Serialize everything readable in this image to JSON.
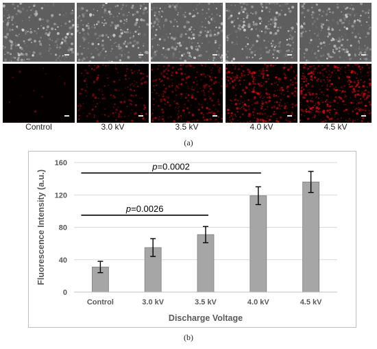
{
  "panel_a": {
    "caption": "(a)",
    "labels": [
      "Control",
      "3.0 kV",
      "3.5 kV",
      "4.0 kV",
      "4.5 kV"
    ],
    "red_intensity": [
      0.03,
      0.35,
      0.55,
      0.75,
      0.85
    ]
  },
  "panel_b": {
    "caption": "(b)"
  },
  "chart_data": {
    "type": "bar",
    "categories": [
      "Control",
      "3.0 kV",
      "3.5 kV",
      "4.0 kV",
      "4.5 kV"
    ],
    "values": [
      31,
      55,
      71,
      119,
      136
    ],
    "errors": [
      7,
      11,
      10,
      11,
      13
    ],
    "xlabel": "Discharge Voltage",
    "ylabel": "Fluorescence Intensity (a.u.)",
    "ylim": [
      0,
      160
    ],
    "yticks": [
      0,
      40,
      80,
      120,
      160
    ],
    "grid": true,
    "bar_color": "#a6a6a6",
    "annotations": [
      {
        "prefix": "p",
        "text": "=0.0002",
        "from": "Control",
        "to": "4.0 kV",
        "level": 147
      },
      {
        "prefix": "p",
        "text": "=0.0026",
        "from": "Control",
        "to": "3.5 kV",
        "level": 95
      }
    ]
  }
}
